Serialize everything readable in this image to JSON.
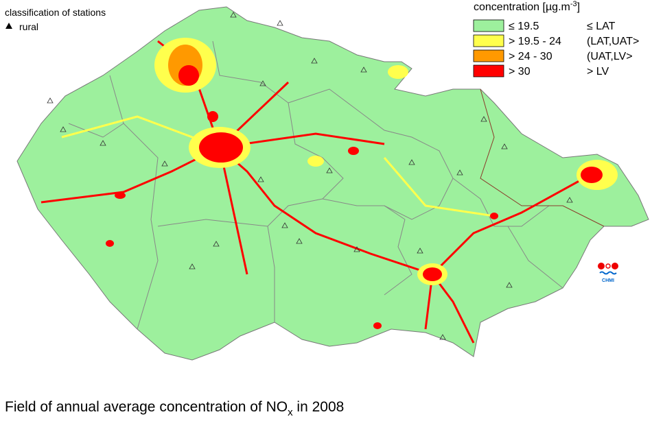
{
  "legend": {
    "title": {
      "text": "concentration [µg.m",
      "superscript": "-3",
      "end": "]"
    },
    "classes": [
      {
        "range": "≤ 19.5",
        "limit": "≤ LAT",
        "color": "#9df09d"
      },
      {
        "range": "> 19.5 - 24",
        "limit": "(LAT,UAT>",
        "color": "#ffff4d"
      },
      {
        "range": "> 24 - 30",
        "limit": "(UAT,LV>",
        "color": "#ff9900"
      },
      {
        "range": "> 30",
        "limit": "> LV",
        "color": "#ff0000"
      }
    ]
  },
  "stations": {
    "title": "classification of stations",
    "items": [
      {
        "label": "rural"
      }
    ]
  },
  "logo": "CHMI",
  "caption": {
    "text": "Field of annual average concentration of NO",
    "subscript": "x",
    "end": " in 2008"
  }
}
